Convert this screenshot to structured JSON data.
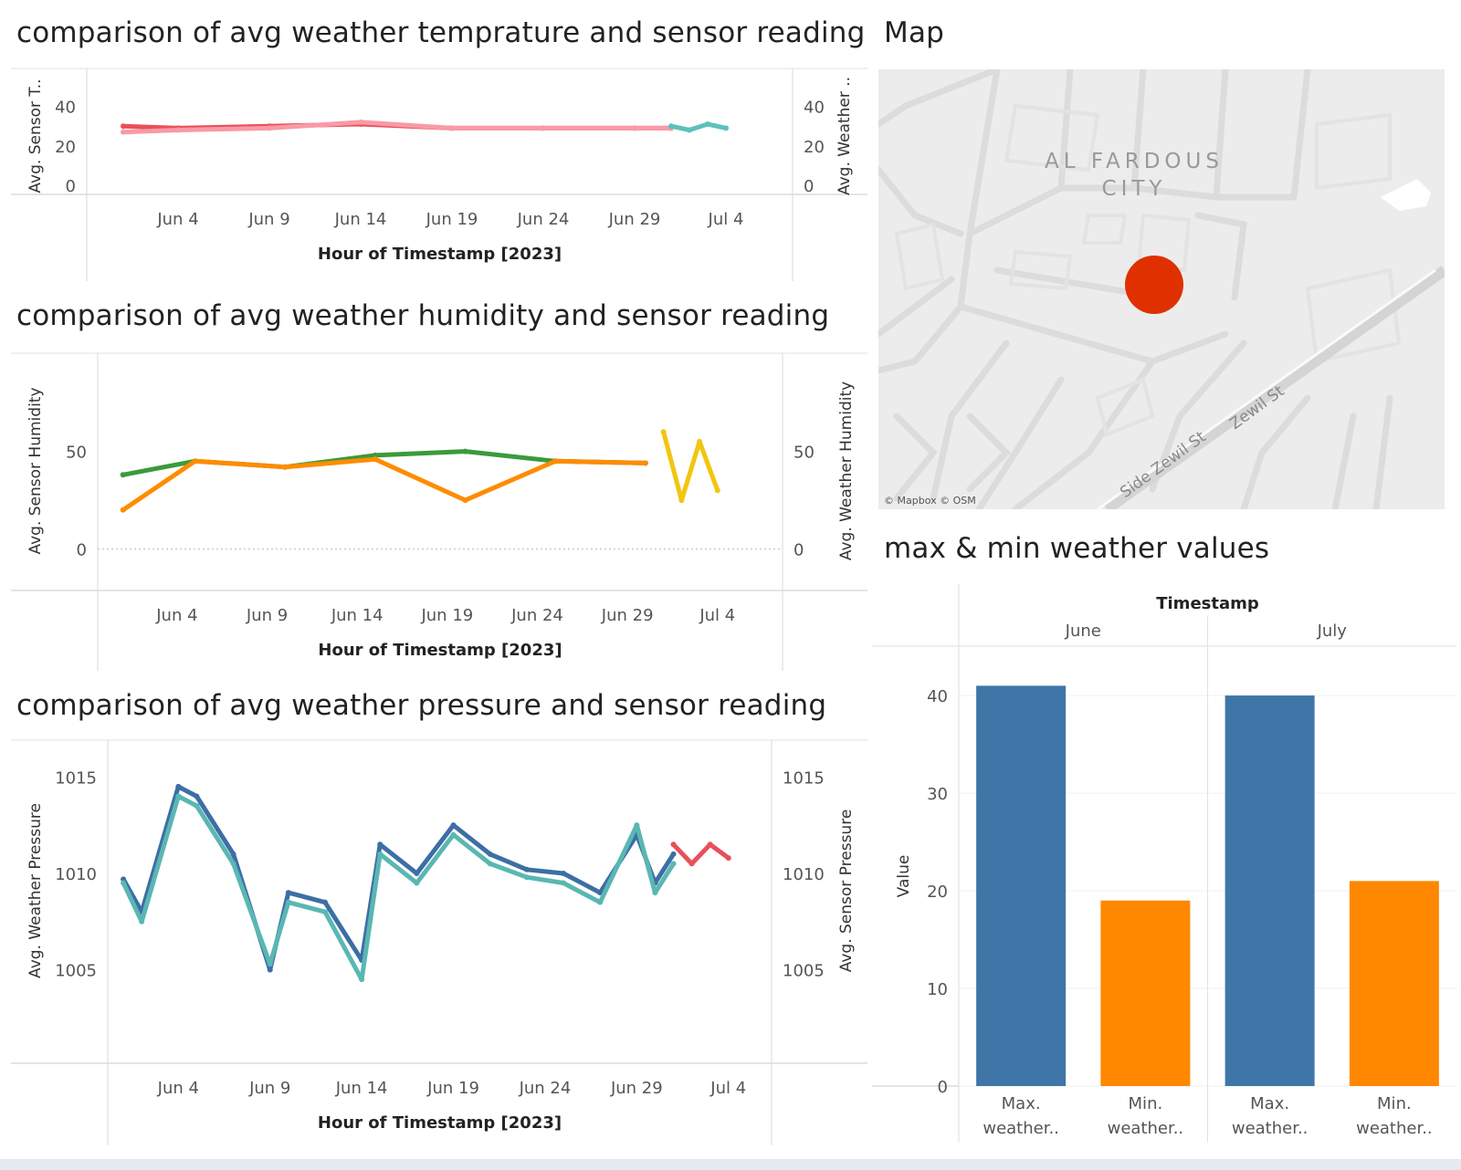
{
  "titles": {
    "temp": "comparison of avg weather temprature and sensor reading",
    "humidity": "comparison of avg weather humidity and sensor reading",
    "pressure": "comparison of avg weather pressure and sensor reading",
    "map": "Map",
    "bars": "max & min weather values"
  },
  "map": {
    "area_label_1": "AL FARDOUS",
    "area_label_2": "CITY",
    "street_1": "Side Zewil St",
    "street_2": "Zewil St",
    "attribution": "© Mapbox © OSM",
    "marker_color": "#e03000"
  },
  "chart_data": [
    {
      "type": "line",
      "title": "comparison of avg weather temprature and sensor reading",
      "xlabel": "Hour of Timestamp [2023]",
      "x_ticks": [
        "Jun 4",
        "Jun 9",
        "Jun 14",
        "Jun 19",
        "Jun 24",
        "Jun 29",
        "Jul 4"
      ],
      "x_range": [
        "2023-05-31",
        "2023-07-07"
      ],
      "y_left_label": "Avg. Sensor T..",
      "y_right_label": "Avg. Weather ..",
      "y_ticks": [
        0,
        20,
        40
      ],
      "ylim": [
        0,
        50
      ],
      "series": [
        {
          "color": "#e8505b",
          "x": [
            "2023-06-01",
            "2023-06-04",
            "2023-06-09",
            "2023-06-14",
            "2023-06-19",
            "2023-06-24",
            "2023-06-29",
            "2023-07-01"
          ],
          "values": [
            30,
            29,
            30,
            31,
            29,
            29,
            29,
            29
          ]
        },
        {
          "color": "#f99aa5",
          "x": [
            "2023-06-01",
            "2023-06-04",
            "2023-06-09",
            "2023-06-14",
            "2023-06-19",
            "2023-06-24",
            "2023-06-29",
            "2023-07-01"
          ],
          "values": [
            27,
            28,
            29,
            32,
            29,
            29,
            29,
            29
          ]
        },
        {
          "color": "#5cc2b9",
          "x": [
            "2023-07-01",
            "2023-07-02",
            "2023-07-03",
            "2023-07-04"
          ],
          "values": [
            30,
            28,
            31,
            29
          ]
        }
      ]
    },
    {
      "type": "line",
      "title": "comparison of avg weather humidity and sensor reading",
      "xlabel": "Hour of Timestamp [2023]",
      "x_ticks": [
        "Jun 4",
        "Jun 9",
        "Jun 14",
        "Jun 19",
        "Jun 24",
        "Jun 29",
        "Jul 4"
      ],
      "x_range": [
        "2023-05-31",
        "2023-07-07"
      ],
      "y_left_label": "Avg. Sensor Humidity",
      "y_right_label": "Avg. Weather Humidity",
      "y_ticks": [
        0,
        50
      ],
      "ylim": [
        -10,
        90
      ],
      "series": [
        {
          "color": "#3a9b3a",
          "x": [
            "2023-06-01",
            "2023-06-05",
            "2023-06-10",
            "2023-06-15",
            "2023-06-20",
            "2023-06-25",
            "2023-06-30"
          ],
          "values": [
            38,
            45,
            42,
            48,
            50,
            45,
            44
          ]
        },
        {
          "color": "#ff8c00",
          "x": [
            "2023-06-01",
            "2023-06-05",
            "2023-06-10",
            "2023-06-15",
            "2023-06-20",
            "2023-06-25",
            "2023-06-30"
          ],
          "values": [
            20,
            45,
            42,
            46,
            25,
            45,
            44
          ]
        },
        {
          "color": "#f2c511",
          "x": [
            "2023-07-01",
            "2023-07-02",
            "2023-07-03",
            "2023-07-04"
          ],
          "values": [
            60,
            25,
            55,
            30
          ]
        }
      ]
    },
    {
      "type": "line",
      "title": "comparison of avg weather pressure and sensor reading",
      "xlabel": "Hour of Timestamp [2023]",
      "x_ticks": [
        "Jun 4",
        "Jun 9",
        "Jun 14",
        "Jun 19",
        "Jun 24",
        "Jun 29",
        "Jul 4"
      ],
      "x_range": [
        "2023-05-31",
        "2023-07-07"
      ],
      "y_left_label": "Avg. Weather Pressure",
      "y_right_label": "Avg. Sensor Pressure",
      "y_ticks": [
        1005,
        1010,
        1015
      ],
      "ylim": [
        1002.0,
        1016.2
      ],
      "series": [
        {
          "color": "#3d6ea5",
          "x": [
            "2023-06-01",
            "2023-06-02",
            "2023-06-04",
            "2023-06-05",
            "2023-06-07",
            "2023-06-09",
            "2023-06-10",
            "2023-06-12",
            "2023-06-14",
            "2023-06-15",
            "2023-06-17",
            "2023-06-19",
            "2023-06-21",
            "2023-06-23",
            "2023-06-25",
            "2023-06-27",
            "2023-06-29",
            "2023-06-30",
            "2023-07-01"
          ],
          "values": [
            1009.7,
            1008.0,
            1014.5,
            1014.0,
            1011.0,
            1005.0,
            1009.0,
            1008.5,
            1005.5,
            1011.5,
            1010.0,
            1012.5,
            1011.0,
            1010.2,
            1010.0,
            1009.0,
            1012.0,
            1009.5,
            1011.0
          ]
        },
        {
          "color": "#5ab7b2",
          "x": [
            "2023-06-01",
            "2023-06-02",
            "2023-06-04",
            "2023-06-05",
            "2023-06-07",
            "2023-06-09",
            "2023-06-10",
            "2023-06-12",
            "2023-06-14",
            "2023-06-15",
            "2023-06-17",
            "2023-06-19",
            "2023-06-21",
            "2023-06-23",
            "2023-06-25",
            "2023-06-27",
            "2023-06-29",
            "2023-06-30",
            "2023-07-01"
          ],
          "values": [
            1009.5,
            1007.5,
            1014.0,
            1013.5,
            1010.5,
            1005.3,
            1008.5,
            1008.0,
            1004.5,
            1011.0,
            1009.5,
            1012.0,
            1010.5,
            1009.8,
            1009.5,
            1008.5,
            1012.5,
            1009.0,
            1010.5
          ]
        },
        {
          "color": "#e8505b",
          "x": [
            "2023-07-01",
            "2023-07-02",
            "2023-07-03",
            "2023-07-04"
          ],
          "values": [
            1011.5,
            1010.5,
            1011.5,
            1010.8
          ]
        }
      ]
    },
    {
      "type": "bar",
      "title": "max & min weather values",
      "column_header": "Timestamp",
      "groups": [
        "June",
        "July"
      ],
      "categories": [
        "Max. weather..",
        "Min. weather.."
      ],
      "ylabel": "Value",
      "y_ticks": [
        0,
        10,
        20,
        30,
        40
      ],
      "ylim": [
        0,
        43
      ],
      "series": [
        {
          "group": "June",
          "values": [
            41,
            19
          ],
          "colors": [
            "#3f76a8",
            "#ff8800"
          ]
        },
        {
          "group": "July",
          "values": [
            40,
            21
          ],
          "colors": [
            "#3f76a8",
            "#ff8800"
          ]
        }
      ]
    }
  ]
}
